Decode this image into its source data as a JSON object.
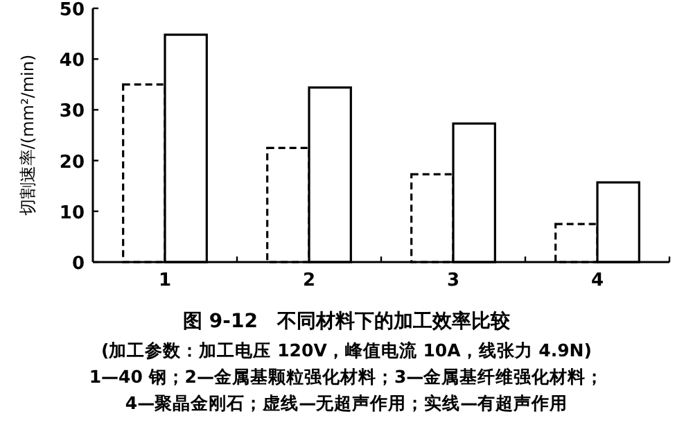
{
  "chart_data": {
    "type": "bar",
    "title": "图 9-12　不同材料下的加工效率比较",
    "ylabel": "切割速率/(mm²/min)",
    "categories": [
      "1",
      "2",
      "3",
      "4"
    ],
    "series": [
      {
        "color": "#000000",
        "line_style": "dashed",
        "values": [
          35,
          22.5,
          17.3,
          7.5
        ]
      },
      {
        "color": "#000000",
        "line_style": "solid",
        "values": [
          44.8,
          34.4,
          27.3,
          15.7
        ]
      }
    ],
    "ylim": [
      0,
      50
    ],
    "yticks": [
      0,
      10,
      20,
      30,
      40,
      50
    ],
    "grid": false,
    "annotations": [
      "(加工参数：加工电压 120V，峰值电流 10A，线张力 4.9N)",
      "1—40 钢；2—金属基颗粒强化材料；3—金属基纤维强化材料；",
      "4—聚晶金刚石；虚线—无超声作用；实线—有超声作用"
    ]
  }
}
